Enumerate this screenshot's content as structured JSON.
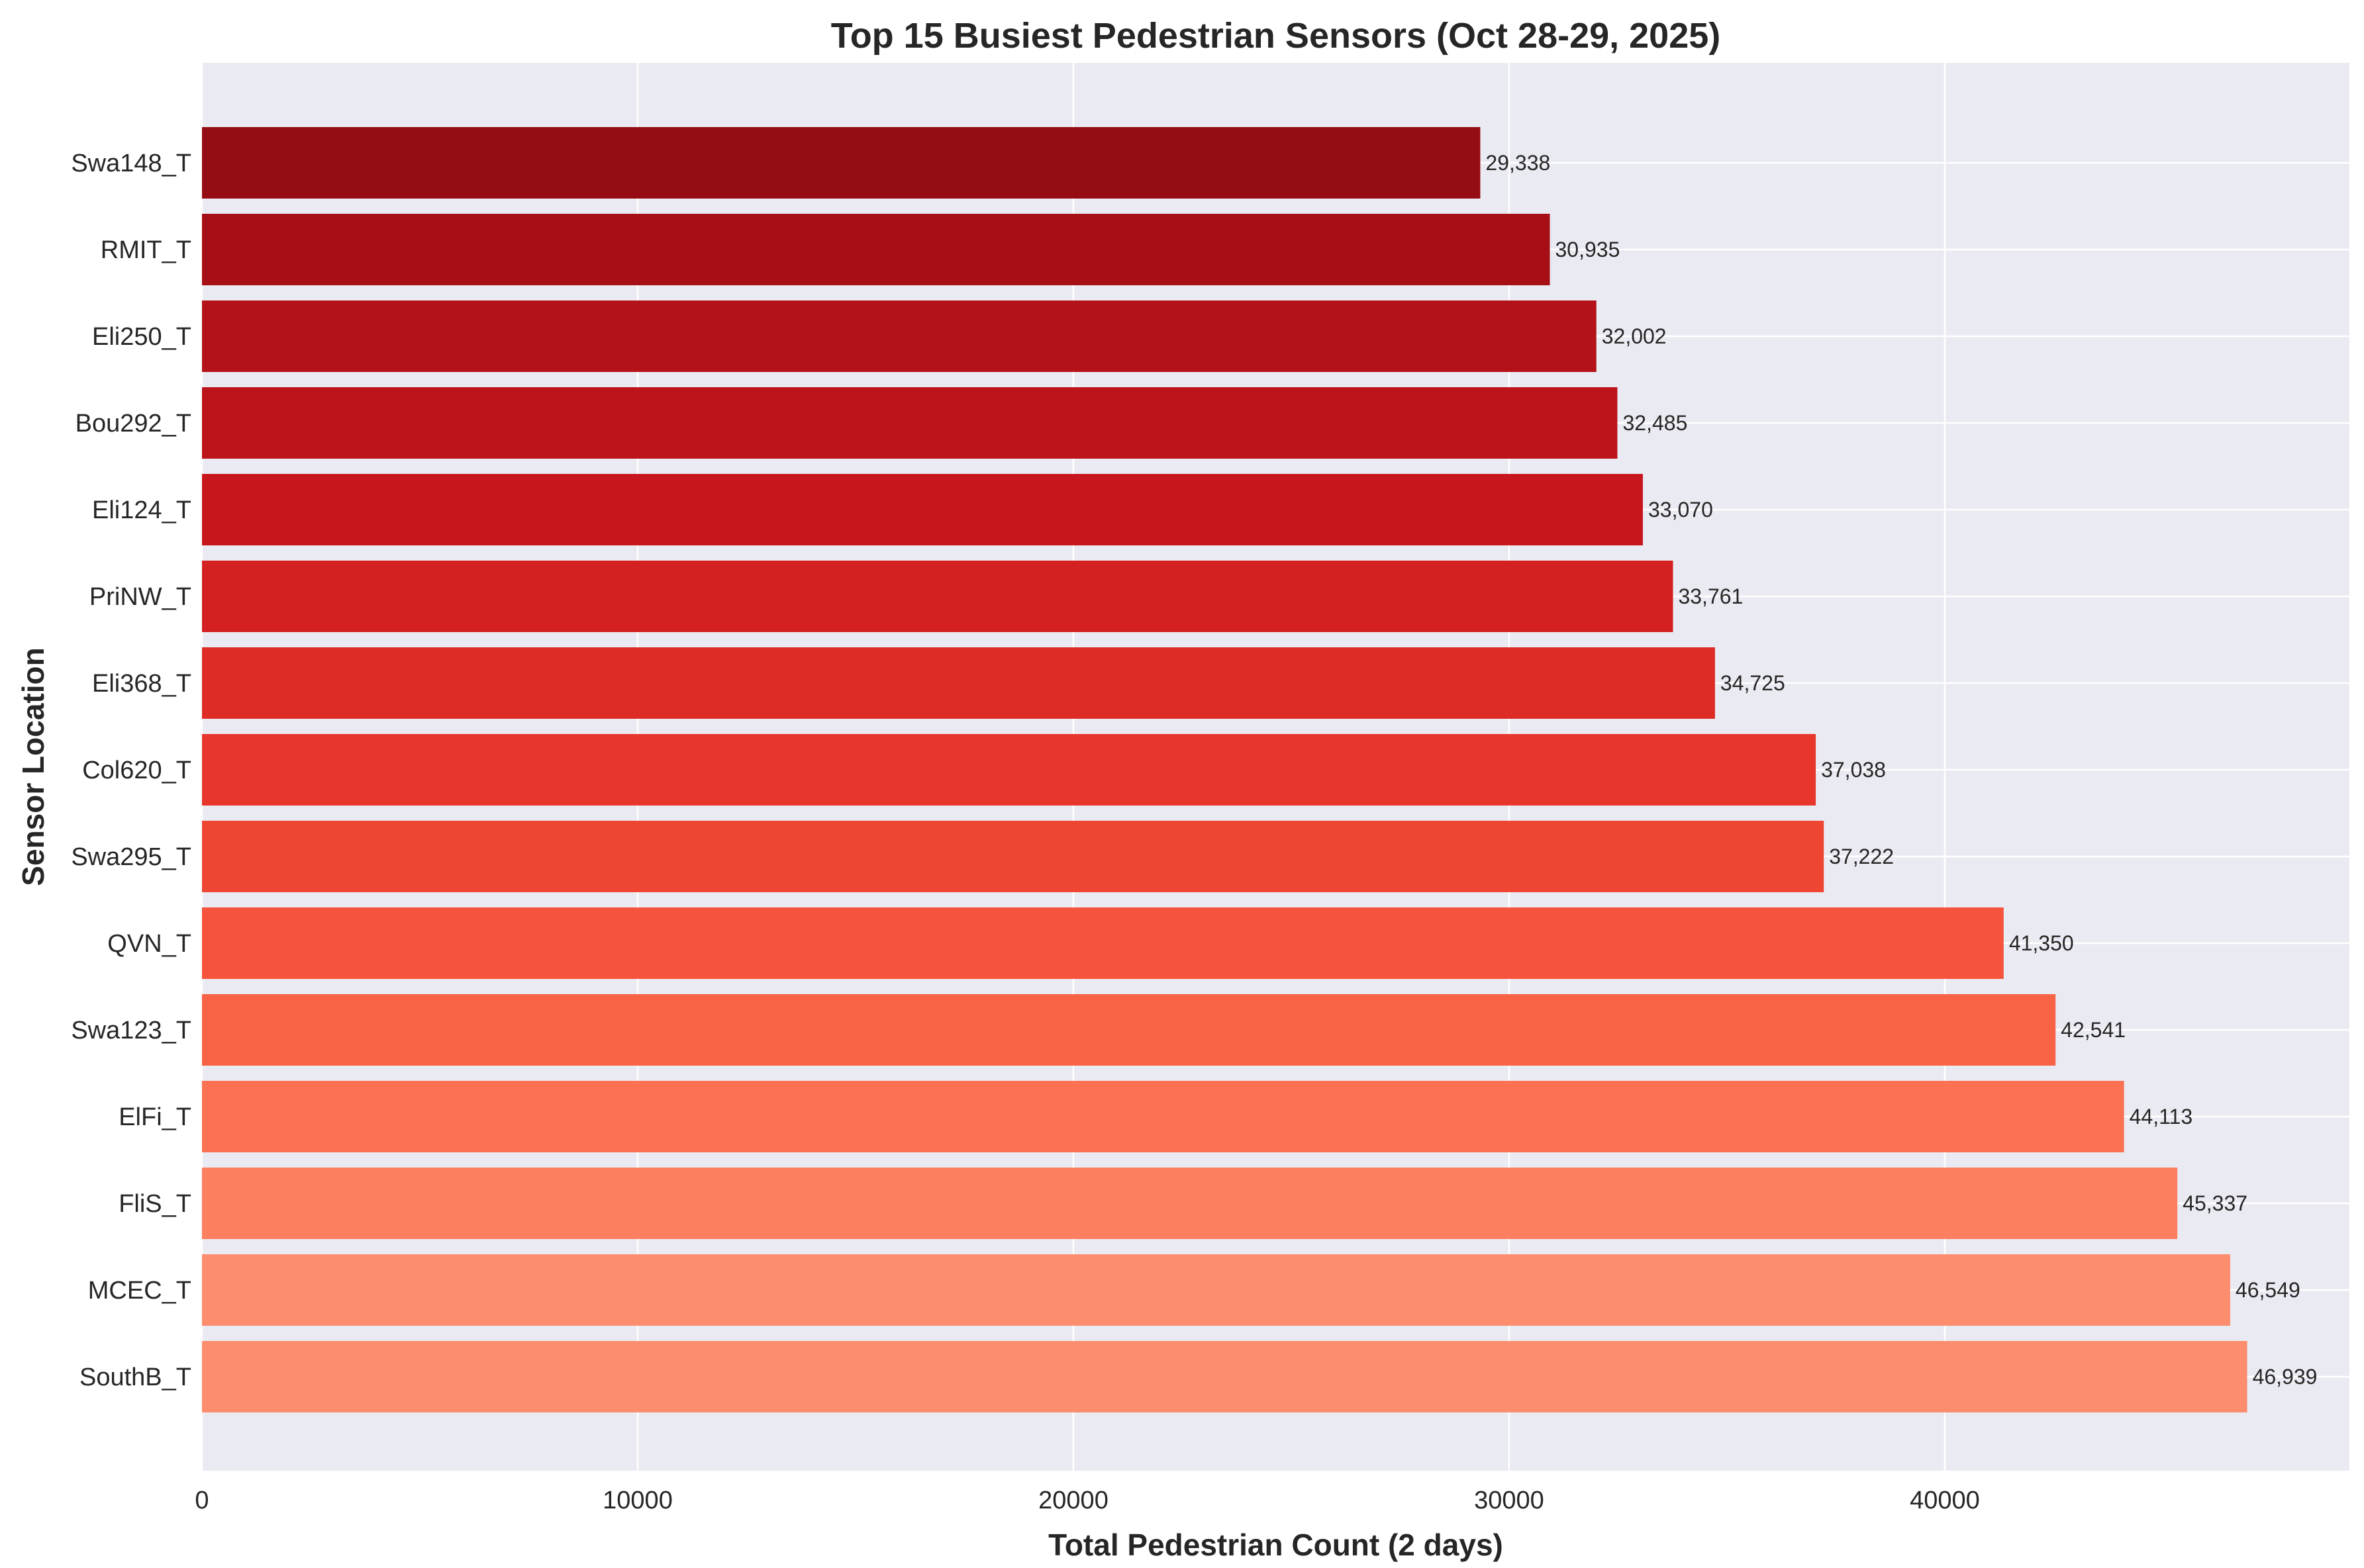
{
  "chart_data": {
    "type": "bar",
    "orientation": "horizontal",
    "title": "Top 15 Busiest Pedestrian Sensors (Oct 28-29, 2025)",
    "xlabel": "Total Pedestrian Count (2 days)",
    "ylabel": "Sensor Location",
    "xlim": [
      0,
      49286
    ],
    "xticks": [
      0,
      10000,
      20000,
      30000,
      40000
    ],
    "xtick_labels": [
      "0",
      "10000",
      "20000",
      "30000",
      "40000"
    ],
    "grid": true,
    "categories": [
      "Swa148_T",
      "RMIT_T",
      "Eli250_T",
      "Bou292_T",
      "Eli124_T",
      "PriNW_T",
      "Eli368_T",
      "Col620_T",
      "Swa295_T",
      "QVN_T",
      "Swa123_T",
      "ElFi_T",
      "FliS_T",
      "MCEC_T",
      "SouthB_T"
    ],
    "values": [
      29338,
      30935,
      32002,
      32485,
      33070,
      33761,
      34725,
      37038,
      37222,
      41350,
      42541,
      44113,
      45337,
      46549,
      46939
    ],
    "value_labels": [
      "29,338",
      "30,935",
      "32,002",
      "32,485",
      "33,070",
      "33,761",
      "34,725",
      "37,038",
      "37,222",
      "41,350",
      "42,541",
      "44,113",
      "45,337",
      "46,549",
      "46,939"
    ],
    "colors": [
      "#960c14",
      "#a60f15",
      "#b21218",
      "#bc141a",
      "#c8171c",
      "#d42020",
      "#de2b25",
      "#e8362c",
      "#ef4533",
      "#f5533b",
      "#f86245",
      "#fb7151",
      "#fc7f5f",
      "#fc8d6d",
      "#fc8d6d"
    ],
    "plot_background": "#eaeaf2",
    "grid_color": "#ffffff"
  }
}
